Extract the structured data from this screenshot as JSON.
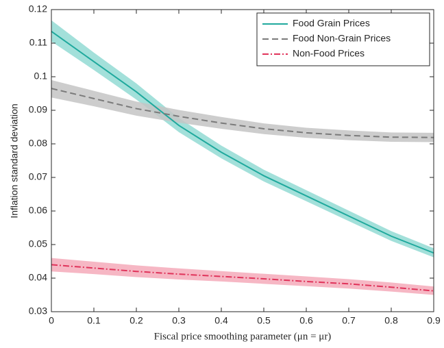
{
  "chart_data": {
    "type": "line",
    "xlabel": "Fiscal price smoothing parameter (μn = μr)",
    "ylabel": "Inflation standard deviation",
    "x": [
      0,
      0.1,
      0.2,
      0.3,
      0.4,
      0.5,
      0.6,
      0.7,
      0.8,
      0.9
    ],
    "series": [
      {
        "name": "Food Grain Prices",
        "color": "#1fa99d",
        "band_color": "#93dbd4",
        "dash": "solid",
        "values": [
          0.1135,
          0.1045,
          0.0955,
          0.0855,
          0.0775,
          0.0705,
          0.0645,
          0.0585,
          0.0525,
          0.0475
        ],
        "lower": [
          0.1105,
          0.102,
          0.0932,
          0.0835,
          0.0757,
          0.0688,
          0.0629,
          0.057,
          0.0511,
          0.0462
        ],
        "upper": [
          0.1168,
          0.1072,
          0.098,
          0.0877,
          0.0795,
          0.0723,
          0.0662,
          0.0601,
          0.054,
          0.0489
        ]
      },
      {
        "name": "Food Non-Grain Prices",
        "color": "#7a7a7a",
        "band_color": "#c4c4c4",
        "dash": "dashed",
        "values": [
          0.0965,
          0.0935,
          0.0905,
          0.0882,
          0.0862,
          0.0845,
          0.0833,
          0.0825,
          0.082,
          0.0819
        ],
        "lower": [
          0.0938,
          0.0912,
          0.0884,
          0.0863,
          0.0845,
          0.0829,
          0.0818,
          0.0811,
          0.0806,
          0.0805
        ],
        "upper": [
          0.099,
          0.0958,
          0.0926,
          0.0901,
          0.088,
          0.0861,
          0.0848,
          0.084,
          0.0834,
          0.0833
        ]
      },
      {
        "name": "Non-Food Prices",
        "color": "#e0335a",
        "band_color": "#f5aaba",
        "dash": "dashdot",
        "values": [
          0.044,
          0.043,
          0.042,
          0.0412,
          0.0405,
          0.0398,
          0.039,
          0.0383,
          0.0373,
          0.0362
        ],
        "lower": [
          0.042,
          0.0412,
          0.0403,
          0.0396,
          0.039,
          0.0383,
          0.0376,
          0.0369,
          0.036,
          0.035
        ],
        "upper": [
          0.046,
          0.0449,
          0.0438,
          0.0429,
          0.0421,
          0.0413,
          0.0405,
          0.0397,
          0.0387,
          0.0375
        ]
      }
    ],
    "xlim": [
      0,
      0.9
    ],
    "xticks": [
      0,
      0.1,
      0.2,
      0.3,
      0.4,
      0.5,
      0.6,
      0.7,
      0.8,
      0.9
    ],
    "ylim": [
      0.03,
      0.12
    ],
    "yticks": [
      0.03,
      0.04,
      0.05,
      0.06,
      0.07,
      0.08,
      0.09,
      0.1,
      0.11,
      0.12
    ],
    "grid": false,
    "legend": "upper right"
  }
}
